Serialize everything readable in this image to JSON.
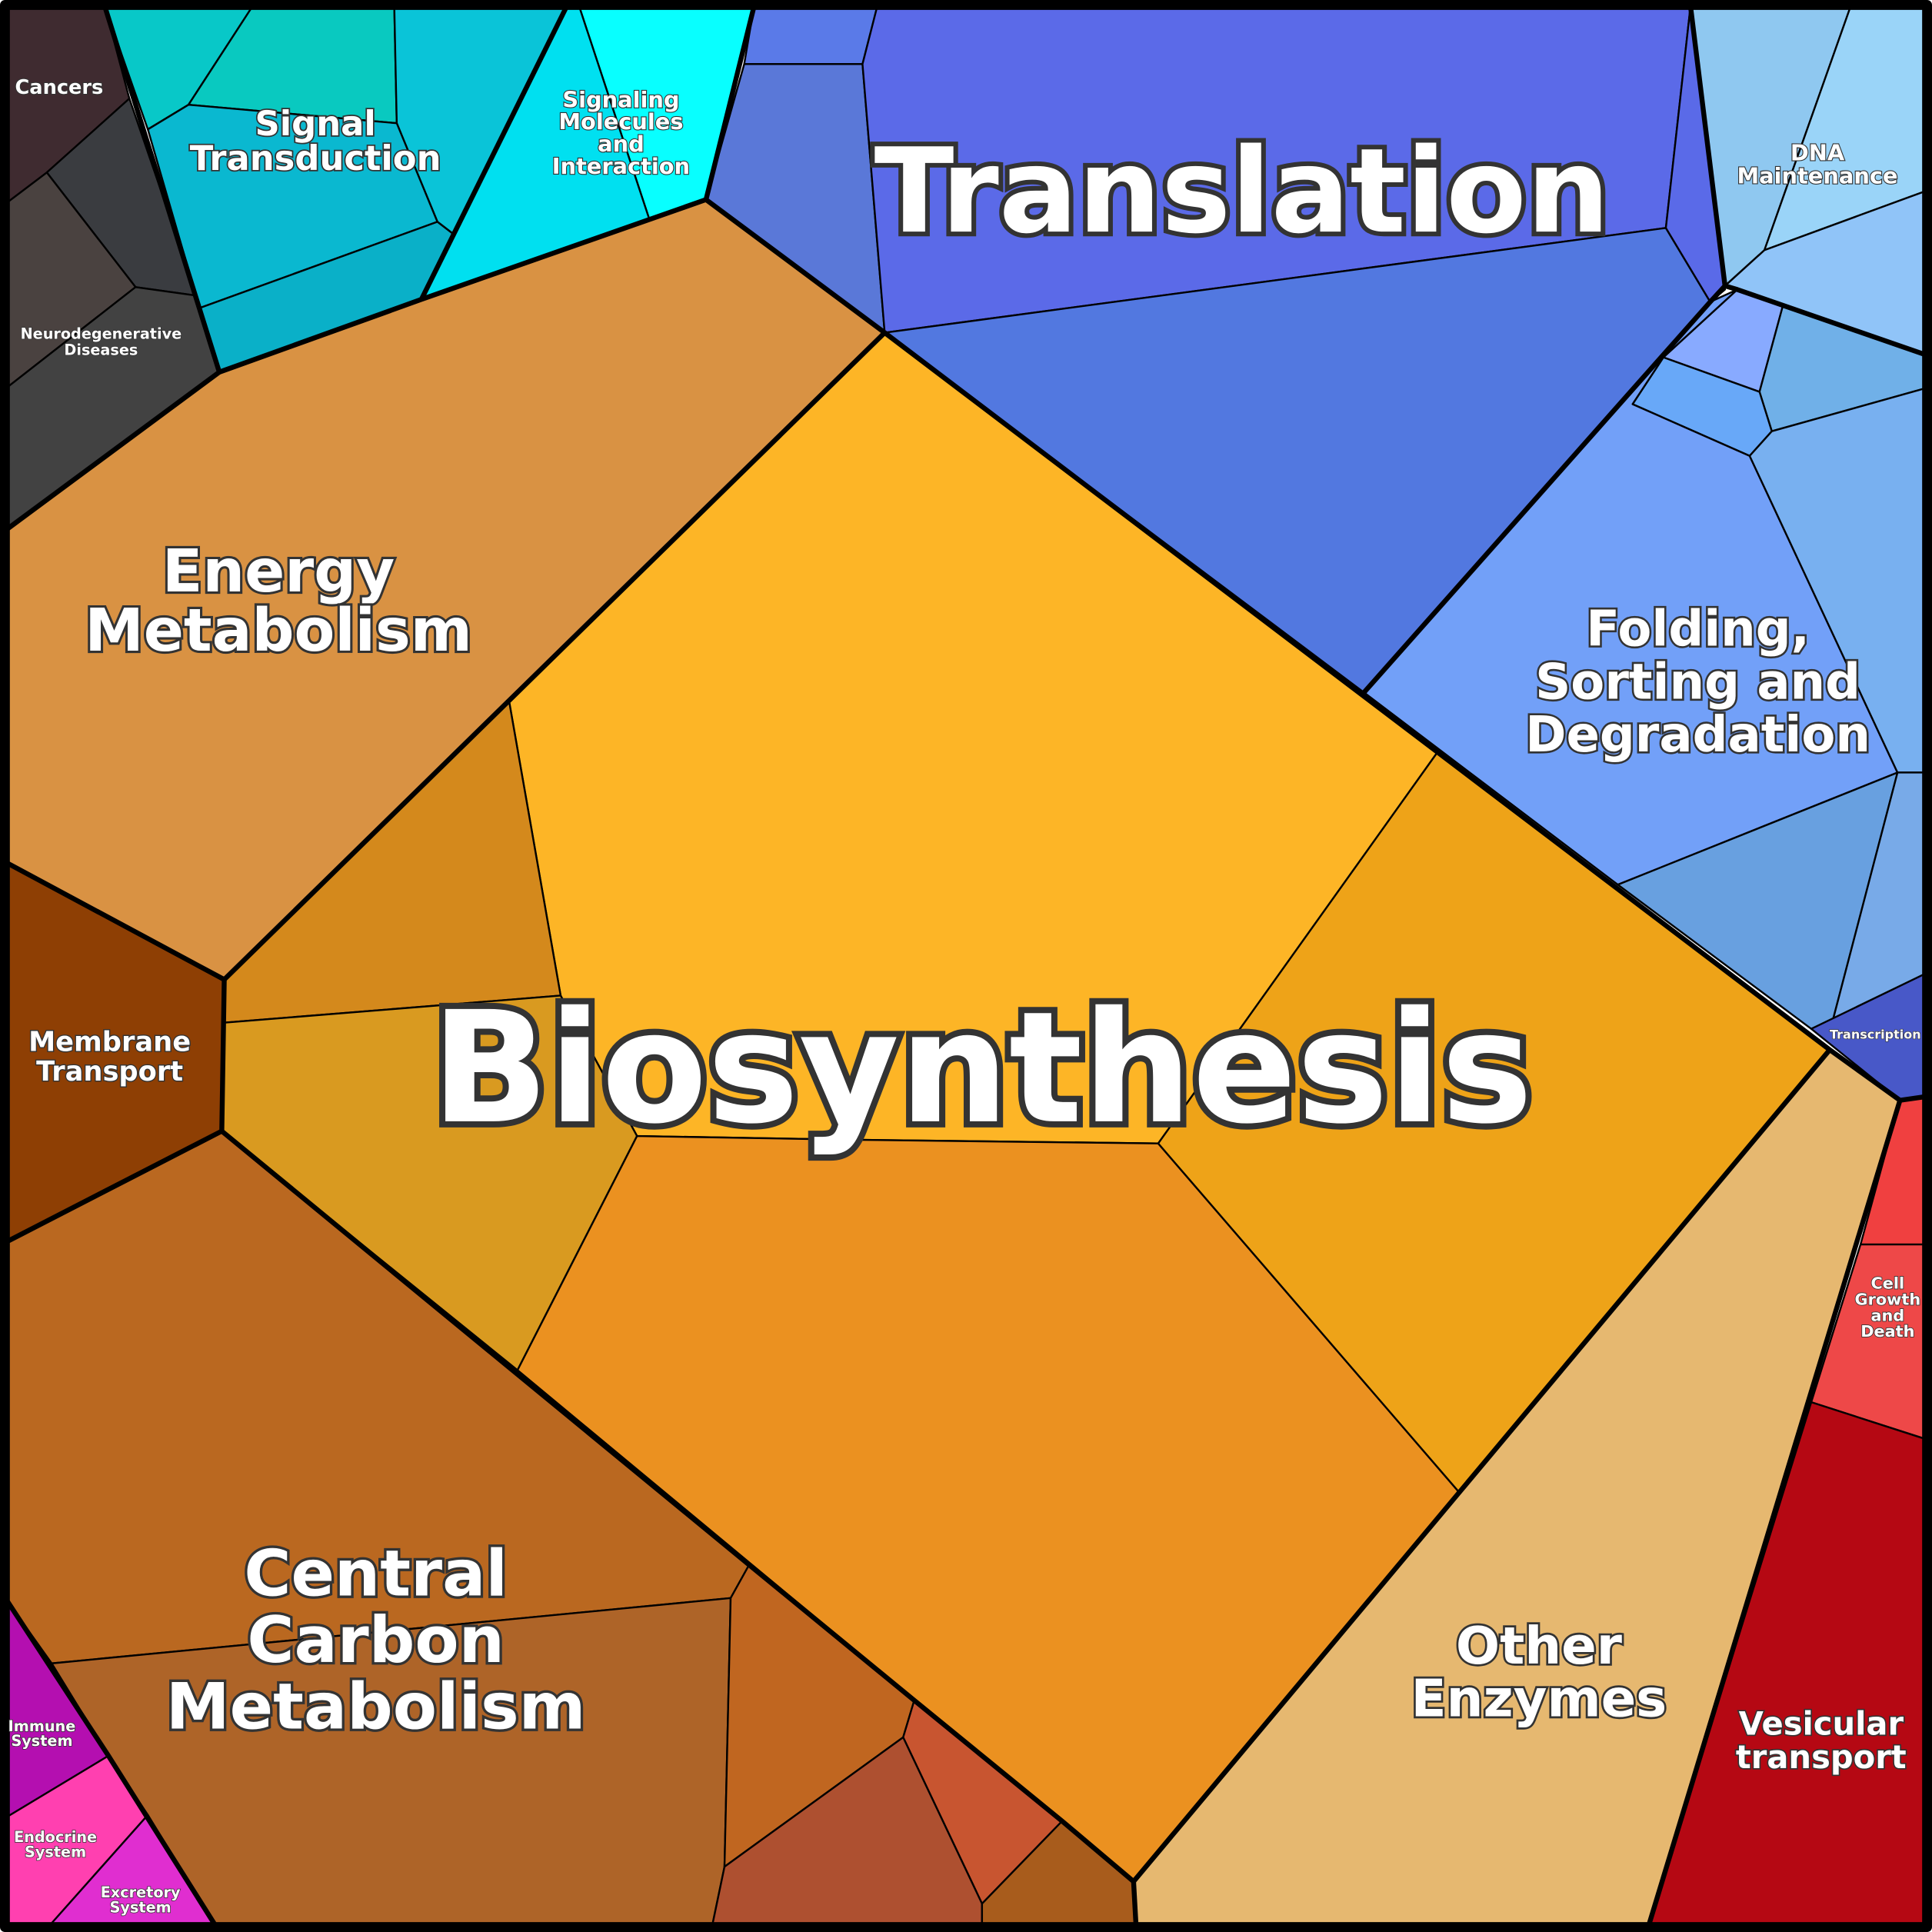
{
  "labels": [
    {
      "lines": [
        "Cancers"
      ]
    },
    {
      "lines": [
        "Neurodegenerative",
        "Diseases"
      ]
    },
    {
      "lines": [
        "Signal",
        "Transduction"
      ]
    },
    {
      "lines": [
        "Signaling",
        "Molecules",
        "and",
        "Interaction"
      ]
    },
    {
      "lines": [
        "Translation"
      ]
    },
    {
      "lines": [
        "DNA",
        "Maintenance"
      ]
    },
    {
      "lines": [
        "Energy",
        "Metabolism"
      ]
    },
    {
      "lines": [
        "Folding,",
        "Sorting and",
        "Degradation"
      ]
    },
    {
      "lines": [
        "Membrane",
        "Transport"
      ]
    },
    {
      "lines": [
        "Biosynthesis"
      ]
    },
    {
      "lines": [
        "Transcription"
      ]
    },
    {
      "lines": [
        "Cell",
        "Growth",
        "and",
        "Death"
      ]
    },
    {
      "lines": [
        "Central",
        "Carbon",
        "Metabolism"
      ]
    },
    {
      "lines": [
        "Other",
        "Enzymes"
      ]
    },
    {
      "lines": [
        "Vesicular",
        "transport"
      ]
    },
    {
      "lines": [
        "Immune",
        "System"
      ]
    },
    {
      "lines": [
        "Endocrine",
        "System"
      ]
    },
    {
      "lines": [
        "Excretory",
        "System"
      ]
    }
  ]
}
